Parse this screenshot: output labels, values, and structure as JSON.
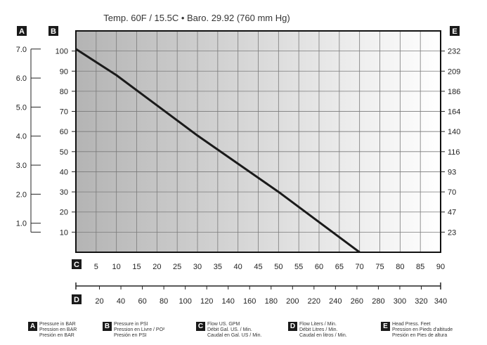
{
  "chart_data": {
    "type": "line",
    "title": "Temp. 60F / 15.5C  •  Baro. 29.92 (760 mm Hg)",
    "x_axis_primary": {
      "badge": "C",
      "range": [
        0,
        90
      ],
      "ticks": [
        5,
        10,
        15,
        20,
        25,
        30,
        35,
        40,
        45,
        50,
        55,
        60,
        65,
        70,
        75,
        80,
        85,
        90
      ]
    },
    "x_axis_secondary": {
      "badge": "D",
      "range": [
        0,
        340
      ],
      "ticks": [
        20,
        40,
        60,
        80,
        100,
        120,
        140,
        160,
        180,
        200,
        220,
        240,
        260,
        280,
        300,
        320,
        340
      ]
    },
    "y_axis_left_bar": {
      "badge": "A",
      "range": [
        0,
        7.0
      ],
      "ticks": [
        "7.0",
        "6.0",
        "5.0",
        "4.0",
        "3.0",
        "2.0",
        "1.0"
      ]
    },
    "y_axis_left_psi": {
      "badge": "B",
      "range": [
        0,
        110
      ],
      "ticks": [
        10,
        20,
        30,
        40,
        50,
        60,
        70,
        80,
        90,
        100
      ]
    },
    "y_axis_right_feet": {
      "badge": "E",
      "ticks": [
        23,
        47,
        70,
        93,
        116,
        140,
        164,
        186,
        209,
        232
      ]
    },
    "series": [
      {
        "x": [
          0,
          10,
          20,
          30,
          40,
          50,
          60,
          70
        ],
        "y": [
          101,
          88,
          73,
          58,
          44,
          30,
          15,
          0
        ]
      }
    ],
    "grid": true
  },
  "legend": [
    {
      "badge": "A",
      "lines": [
        "Pressure in BAR",
        "Pression en BAR",
        "Presión en BAR"
      ]
    },
    {
      "badge": "B",
      "lines": [
        "Pressure in PSI",
        "Pression en Livre / PO²",
        "Presión en PSI"
      ]
    },
    {
      "badge": "C",
      "lines": [
        "Flow US. GPM",
        "Débit Gal. US. / Min.",
        "Caudal en Gal. US / Min."
      ]
    },
    {
      "badge": "D",
      "lines": [
        "Flow Liters / Min.",
        "Débit Litres / Min.",
        "Caudal en litros / Min."
      ]
    },
    {
      "badge": "E",
      "lines": [
        "Head Press. Feet",
        "Pression en Pieds d'altitude",
        "Presión en Pies de altura"
      ]
    }
  ],
  "colors": {
    "shade_dark": "#b4b4b4",
    "shade_light": "#ffffff",
    "line": "#1a1a1a",
    "grid": "#7a7a7a",
    "badge": "#1a1a1a"
  }
}
